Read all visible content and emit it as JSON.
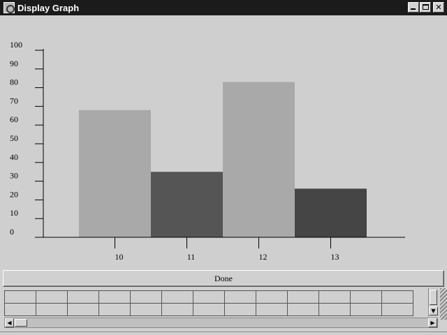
{
  "window": {
    "title": "Display Graph"
  },
  "chart_data": {
    "type": "bar",
    "categories": [
      "10",
      "11",
      "12",
      "13"
    ],
    "values": [
      68,
      35,
      83,
      26
    ],
    "colors": [
      "#a9a9a9",
      "#555555",
      "#a9a9a9",
      "#454545"
    ],
    "ylim": [
      0,
      100
    ],
    "yticks": [
      "0",
      "10",
      "20",
      "30",
      "40",
      "50",
      "60",
      "70",
      "80",
      "90",
      "100"
    ],
    "title": "",
    "xlabel": "",
    "ylabel": "",
    "grid": false
  },
  "done_button": {
    "label": "Done"
  },
  "table": {
    "rows": 2,
    "columns": 13
  },
  "colors": {
    "titlebar": "#1b1b1b",
    "background": "#d0d0d0"
  }
}
